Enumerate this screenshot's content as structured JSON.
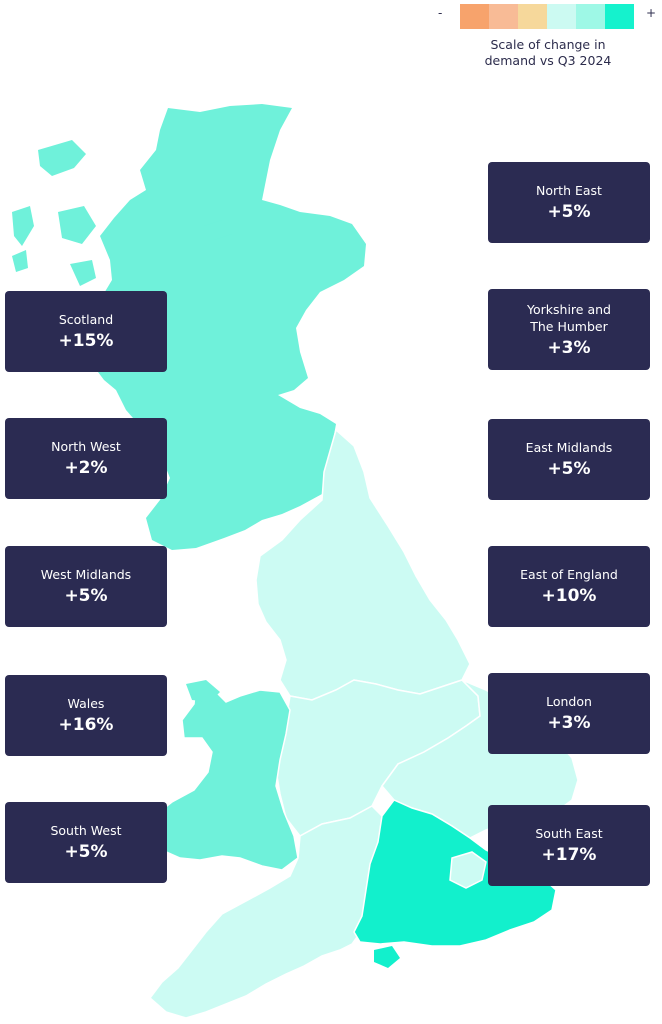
{
  "legend": {
    "minus_label": "-",
    "plus_label": "+",
    "caption": "Scale of change in demand vs Q3 2024",
    "swatches": [
      "#f7a36c",
      "#f8bb96",
      "#f6d89b",
      "#ccfaf2",
      "#9ef8e6",
      "#15f2cd"
    ]
  },
  "colors": {
    "box": "#2b2b52",
    "low": "#ccfbf3",
    "mid": "#6ff1da",
    "high": "#12f0cc"
  },
  "regions": [
    {
      "name": "Scotland",
      "value": "+15%"
    },
    {
      "name": "North West",
      "value": "+2%"
    },
    {
      "name": "West Midlands",
      "value": "+5%"
    },
    {
      "name": "Wales",
      "value": "+16%"
    },
    {
      "name": "South West",
      "value": "+5%"
    },
    {
      "name": "North East",
      "value": "+5%"
    },
    {
      "name": "Yorkshire and The Humber",
      "value": "+3%"
    },
    {
      "name": "East Midlands",
      "value": "+5%"
    },
    {
      "name": "East of England",
      "value": "+10%"
    },
    {
      "name": "London",
      "value": "+3%"
    },
    {
      "name": "South East",
      "value": "+17%"
    }
  ]
}
